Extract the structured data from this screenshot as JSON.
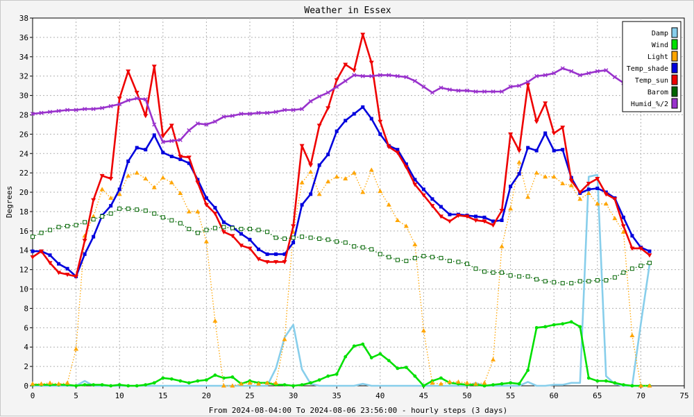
{
  "chart_data": {
    "type": "line",
    "title": "Weather in Essex",
    "xlabel": "From 2024-08-04:00 To 2024-08-06 23:56:00 - hourly steps (3 days)",
    "ylabel": "Degrees",
    "xlim": [
      0,
      75
    ],
    "ylim": [
      0,
      38
    ],
    "xticks": [
      0,
      5,
      10,
      15,
      20,
      25,
      30,
      35,
      40,
      45,
      50,
      55,
      60,
      65,
      70,
      75
    ],
    "yticks": [
      0,
      2,
      4,
      6,
      8,
      10,
      12,
      14,
      16,
      18,
      20,
      22,
      24,
      26,
      28,
      30,
      32,
      34,
      36,
      38
    ],
    "grid": true,
    "legend_position": "top-right",
    "series": [
      {
        "name": "Damp",
        "color": "#87ceeb",
        "style": "solid",
        "marker": "none",
        "values": [
          0,
          0,
          0,
          0,
          0,
          0,
          0.5,
          0,
          0,
          0,
          0,
          0,
          0,
          0,
          0,
          0,
          0,
          0,
          0,
          0,
          0,
          0,
          0,
          0,
          0,
          0,
          0,
          0,
          1.8,
          5,
          6.3,
          1.7,
          0.2,
          0,
          0,
          0,
          0,
          0,
          0.2,
          0,
          0,
          0,
          0,
          0,
          0,
          0,
          0,
          0,
          0,
          0,
          0,
          0.3,
          0,
          0,
          0,
          0,
          0,
          0.4,
          0,
          0,
          0.1,
          0.1,
          0.3,
          0.3,
          21.6,
          21.8,
          1,
          0.2,
          0,
          0,
          6.4,
          12.5
        ]
      },
      {
        "name": "Wind",
        "color": "#00e000",
        "style": "solid",
        "marker": "circle",
        "values": [
          0.1,
          0.1,
          0.1,
          0.1,
          0.1,
          0,
          0.1,
          0.1,
          0.1,
          0,
          0.1,
          0,
          0,
          0.1,
          0.3,
          0.8,
          0.7,
          0.5,
          0.3,
          0.5,
          0.6,
          1.1,
          0.8,
          0.9,
          0.2,
          0.5,
          0.3,
          0.3,
          0.1,
          0.1,
          0,
          0.1,
          0.3,
          0.6,
          1,
          1.2,
          3,
          4.1,
          4.3,
          2.9,
          3.3,
          2.6,
          1.8,
          1.9,
          1,
          0,
          0.5,
          0.8,
          0.3,
          0.2,
          0.1,
          0.1,
          0,
          0.1,
          0.2,
          0.3,
          0.2,
          1.6,
          6,
          6.1,
          6.3,
          6.4,
          6.6,
          6.1,
          0.8,
          0.5,
          0.5,
          0.3,
          0.1,
          0,
          0,
          0
        ]
      },
      {
        "name": "Light",
        "color": "#ffa500",
        "style": "dotted",
        "marker": "triangle",
        "values": [
          0.2,
          0.2,
          0.3,
          0.2,
          0.3,
          3.8,
          15.5,
          17.5,
          20.3,
          19.4,
          19.8,
          21.7,
          22,
          21.4,
          20.5,
          21.5,
          21,
          19.9,
          18,
          18,
          14.9,
          6.7,
          0,
          0,
          0.2,
          0.3,
          0.2,
          0.3,
          0.3,
          4.8,
          15.9,
          21,
          22.1,
          19.8,
          21.1,
          21.6,
          21.4,
          22,
          20,
          22.3,
          20.1,
          18.7,
          17.1,
          16.5,
          14.6,
          5.7,
          0.3,
          0.2,
          0.4,
          0.4,
          0.3,
          0.2,
          0.3,
          2.7,
          14.4,
          18.3,
          23.1,
          19.5,
          22,
          21.6,
          21.6,
          20.9,
          20.7,
          19.3,
          19.9,
          18.8,
          18.8,
          17.3,
          15.9,
          5.2,
          0,
          0
        ]
      },
      {
        "name": "Temp_shade",
        "color": "#0000dd",
        "style": "solid",
        "marker": "square",
        "values": [
          13.9,
          13.9,
          13.5,
          12.6,
          12.1,
          11.3,
          13.6,
          15.4,
          17.6,
          18.6,
          20.3,
          23.2,
          24.6,
          24.4,
          25.9,
          24.1,
          23.7,
          23.4,
          23,
          21.3,
          19.4,
          18.4,
          16.9,
          16.4,
          15.7,
          15.1,
          14.1,
          13.6,
          13.6,
          13.6,
          14.8,
          18.7,
          19.8,
          22.8,
          23.9,
          26.3,
          27.4,
          28.1,
          28.8,
          27.6,
          26,
          24.8,
          24.4,
          22.9,
          21.3,
          20.3,
          19.3,
          18.5,
          17.7,
          17.7,
          17.6,
          17.5,
          17.4,
          17,
          17.1,
          20.6,
          21.9,
          24.6,
          24.3,
          26.1,
          24.3,
          24.4,
          21.5,
          19.9,
          20.3,
          20.4,
          20,
          19.4,
          17.4,
          15.5,
          14.3,
          13.9
        ]
      },
      {
        "name": "Temp_sun",
        "color": "#ee0000",
        "style": "solid",
        "marker": "triangle-down",
        "values": [
          13.3,
          13.9,
          12.7,
          11.7,
          11.5,
          11.3,
          15,
          19.2,
          21.7,
          21.4,
          29.7,
          32.5,
          30.3,
          27.9,
          33,
          25.8,
          26.9,
          23.7,
          23.6,
          21,
          18.7,
          17.8,
          15.9,
          15.5,
          14.5,
          14.2,
          13.1,
          12.8,
          12.8,
          12.8,
          16.5,
          24.8,
          22.8,
          26.9,
          28.7,
          31.6,
          33.2,
          32.6,
          36.3,
          33.4,
          27.3,
          24.7,
          24.1,
          22.6,
          20.8,
          19.7,
          18.6,
          17.5,
          17,
          17.6,
          17.5,
          17.1,
          17,
          16.6,
          18.1,
          26,
          24.3,
          31.1,
          27.3,
          29.2,
          26.1,
          26.7,
          21.2,
          20,
          20.9,
          21.4,
          19.8,
          19.3,
          16.5,
          14.2,
          14.2,
          13.5
        ]
      },
      {
        "name": "Barom",
        "color": "#006400",
        "style": "dotted",
        "marker": "hollow-square",
        "values": [
          15.4,
          15.8,
          16.1,
          16.4,
          16.5,
          16.6,
          16.9,
          17.2,
          17.5,
          17.8,
          18.3,
          18.3,
          18.2,
          18.1,
          17.8,
          17.4,
          17.1,
          16.8,
          16.2,
          15.8,
          16.1,
          16.3,
          16.4,
          16.3,
          16.2,
          16.2,
          16.1,
          15.9,
          15.3,
          15.2,
          15.3,
          15.4,
          15.3,
          15.2,
          15.1,
          14.9,
          14.8,
          14.4,
          14.3,
          14.1,
          13.6,
          13.3,
          13,
          12.9,
          13.2,
          13.4,
          13.3,
          13.2,
          12.9,
          12.8,
          12.6,
          12.1,
          11.8,
          11.7,
          11.7,
          11.4,
          11.3,
          11.3,
          11,
          10.8,
          10.7,
          10.6,
          10.6,
          10.8,
          10.8,
          10.9,
          10.9,
          11.2,
          11.7,
          12.1,
          12.4,
          12.7
        ]
      },
      {
        "name": "Humid_%/2",
        "color": "#9932cc",
        "style": "solid",
        "marker": "x",
        "values": [
          28.1,
          28.2,
          28.3,
          28.4,
          28.5,
          28.5,
          28.6,
          28.6,
          28.7,
          28.9,
          29.1,
          29.5,
          29.7,
          29.6,
          27,
          25.2,
          25.3,
          25.4,
          26.4,
          27.1,
          27,
          27.3,
          27.8,
          27.9,
          28.1,
          28.1,
          28.2,
          28.2,
          28.3,
          28.5,
          28.5,
          28.6,
          29.4,
          29.9,
          30.3,
          30.9,
          31.5,
          32.1,
          32,
          32,
          32.1,
          32.1,
          32,
          31.9,
          31.5,
          30.9,
          30.3,
          30.8,
          30.6,
          30.5,
          30.5,
          30.4,
          30.4,
          30.4,
          30.4,
          30.9,
          31,
          31.4,
          32,
          32.1,
          32.3,
          32.8,
          32.5,
          32.1,
          32.3,
          32.5,
          32.6,
          31.9,
          31.3,
          null,
          null,
          null
        ]
      }
    ]
  }
}
